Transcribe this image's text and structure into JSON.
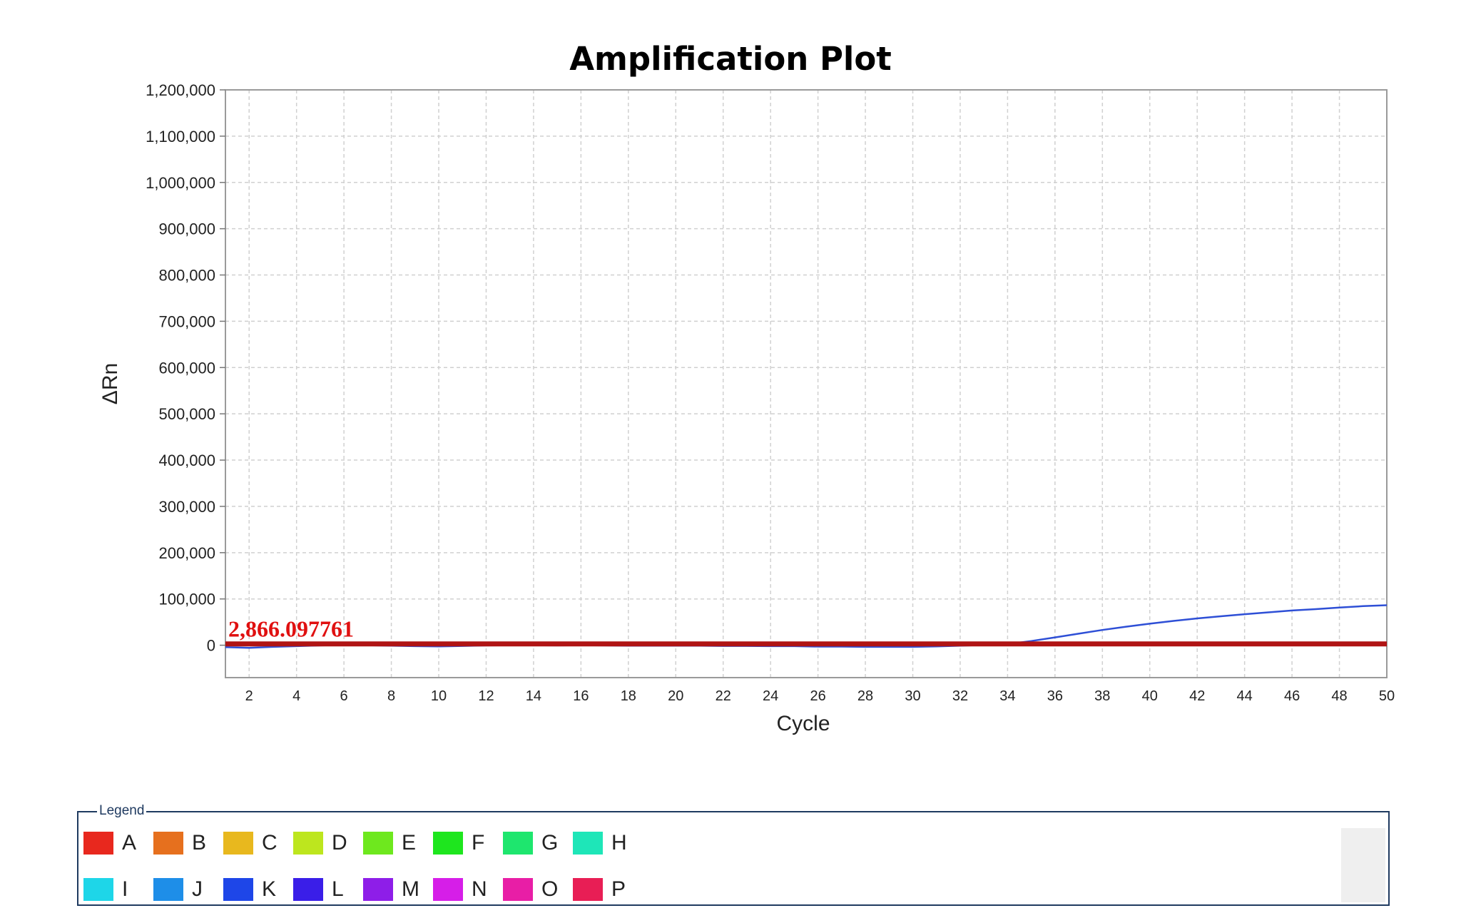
{
  "chart_data": {
    "type": "line",
    "title": "Amplification Plot",
    "xlabel": "Cycle",
    "ylabel": "ΔRn",
    "xlim": [
      1,
      50
    ],
    "ylim": [
      -70000,
      1200000
    ],
    "x_ticks": [
      2,
      4,
      6,
      8,
      10,
      12,
      14,
      16,
      18,
      20,
      22,
      24,
      26,
      28,
      30,
      32,
      34,
      36,
      38,
      40,
      42,
      44,
      46,
      48,
      50
    ],
    "y_ticks": [
      0,
      100000,
      200000,
      300000,
      400000,
      500000,
      600000,
      700000,
      800000,
      900000,
      1000000,
      1100000,
      1200000
    ],
    "y_tick_labels": [
      "0",
      "100,000",
      "200,000",
      "300,000",
      "400,000",
      "500,000",
      "600,000",
      "700,000",
      "800,000",
      "900,000",
      "1,000,000",
      "1,100,000",
      "1,200,000"
    ],
    "grid": true,
    "threshold": {
      "value": 2866.097761,
      "label": "2,866.097761",
      "color": "#b01414"
    },
    "series": [
      {
        "color": "#2e4fd6",
        "x": [
          1,
          2,
          3,
          4,
          5,
          6,
          7,
          8,
          9,
          10,
          11,
          12,
          13,
          14,
          15,
          16,
          17,
          18,
          19,
          20,
          21,
          22,
          23,
          24,
          25,
          26,
          27,
          28,
          29,
          30,
          31,
          32,
          33,
          34,
          35,
          36,
          37,
          38,
          39,
          40,
          41,
          42,
          43,
          44,
          45,
          46,
          47,
          48,
          49,
          50
        ],
        "y": [
          -4000,
          -5500,
          -3500,
          -2000,
          -500,
          500,
          0,
          -1000,
          -2000,
          -2500,
          -1500,
          -500,
          0,
          0,
          -500,
          0,
          -500,
          -1000,
          -1000,
          -1000,
          -1000,
          -1500,
          -1500,
          -2000,
          -2000,
          -3000,
          -3000,
          -3500,
          -3500,
          -3500,
          -2500,
          -1000,
          500,
          2500,
          9000,
          17000,
          25000,
          33000,
          40000,
          46500,
          52500,
          58000,
          62500,
          67000,
          71000,
          75000,
          78000,
          81500,
          84500,
          86500
        ]
      }
    ]
  },
  "legend": {
    "title": "Legend",
    "items": [
      {
        "label": "A",
        "color": "#e8281e"
      },
      {
        "label": "B",
        "color": "#e6701e"
      },
      {
        "label": "C",
        "color": "#e8b81e"
      },
      {
        "label": "D",
        "color": "#bde61e"
      },
      {
        "label": "E",
        "color": "#6ee81e"
      },
      {
        "label": "F",
        "color": "#1ee61e"
      },
      {
        "label": "G",
        "color": "#1ee66e"
      },
      {
        "label": "H",
        "color": "#1ee6b8"
      },
      {
        "label": "I",
        "color": "#1ed6e8"
      },
      {
        "label": "J",
        "color": "#1e8ee8"
      },
      {
        "label": "K",
        "color": "#1e46e8"
      },
      {
        "label": "L",
        "color": "#3a1ee8"
      },
      {
        "label": "M",
        "color": "#8e1ee8"
      },
      {
        "label": "N",
        "color": "#d61ee8"
      },
      {
        "label": "O",
        "color": "#e81ea6"
      },
      {
        "label": "P",
        "color": "#e81e55"
      }
    ]
  }
}
